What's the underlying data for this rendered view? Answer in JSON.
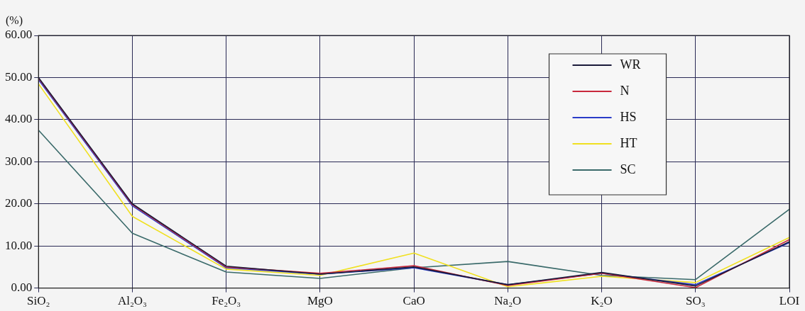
{
  "chart_data": {
    "type": "line",
    "ylabel": "(%)",
    "categories": [
      "SiO₂",
      "Al₂O₃",
      "Fe₂O₃",
      "MgO",
      "CaO",
      "Na₂O",
      "K₂O",
      "SO₃",
      "LOI"
    ],
    "series": [
      {
        "name": "WR",
        "color": "#1a1a3a",
        "values": [
          50,
          20,
          5.2,
          3.3,
          5,
          0.8,
          3.7,
          0.5,
          11
        ]
      },
      {
        "name": "N",
        "color": "#c8283c",
        "values": [
          49.8,
          19.8,
          5,
          3.5,
          5.3,
          0.6,
          3.5,
          0.1,
          11.5
        ]
      },
      {
        "name": "HS",
        "color": "#2a3cc8",
        "values": [
          49.5,
          19.5,
          4.8,
          3.3,
          4.8,
          0.8,
          3.5,
          0.8,
          10.8
        ]
      },
      {
        "name": "HT",
        "color": "#f0e020",
        "values": [
          48.5,
          17,
          4.5,
          3,
          8.3,
          0.3,
          2.8,
          1.3,
          12
        ]
      },
      {
        "name": "SC",
        "color": "#3a6a6a",
        "values": [
          37.5,
          13,
          3.8,
          2.3,
          4.8,
          6.3,
          3,
          2,
          18.7
        ]
      }
    ],
    "ylim": [
      0,
      60
    ],
    "yticks": [
      {
        "value": 0,
        "label": "0.00"
      },
      {
        "value": 10,
        "label": "10.00"
      },
      {
        "value": 20,
        "label": "20.00"
      },
      {
        "value": 30,
        "label": "30.00"
      },
      {
        "value": 40,
        "label": "40.00"
      },
      {
        "value": 50,
        "label": "50.00"
      },
      {
        "value": 60,
        "label": "60.00"
      }
    ],
    "grid": true,
    "legend": "top right",
    "marker": "none",
    "line_style": "solid"
  }
}
